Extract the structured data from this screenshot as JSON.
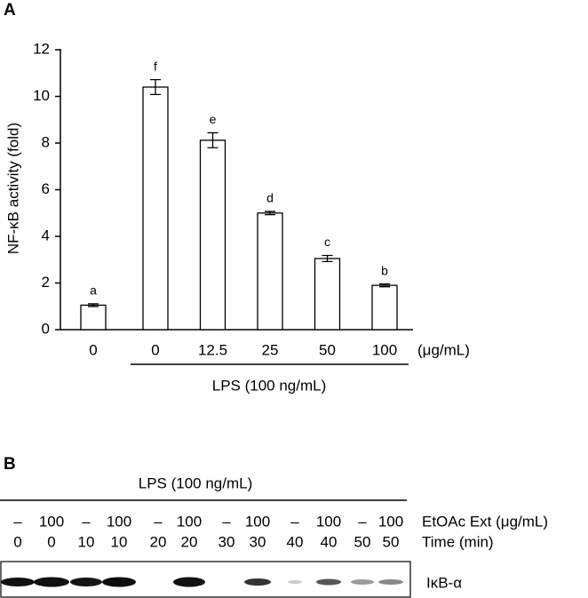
{
  "panel_a": {
    "chart_data": {
      "type": "bar",
      "panel_label": "A",
      "y_label": "NF-κB activity (fold)",
      "categories": [
        "0",
        "0",
        "12.5",
        "25",
        "50",
        "100"
      ],
      "values": [
        1.05,
        10.4,
        8.12,
        5.0,
        3.05,
        1.9
      ],
      "errors": [
        0.06,
        0.32,
        0.32,
        0.07,
        0.13,
        0.06
      ],
      "letters": [
        "a",
        "f",
        "e",
        "d",
        "c",
        "b"
      ],
      "x_unit": "(μg/mL)",
      "group_label": "LPS (100 ng/mL)",
      "color": "#ffffff",
      "ylim": [
        0,
        12
      ],
      "yticks": [
        0,
        2,
        4,
        6,
        8,
        10,
        12
      ]
    }
  },
  "panel_b": {
    "panel_label": "B",
    "lps_label": "LPS (100 ng/mL)",
    "ext_row": [
      "–",
      "100",
      "–",
      "100",
      "–",
      "100",
      "–",
      "100",
      "–",
      "100",
      "–",
      "100"
    ],
    "time_row": [
      "0",
      "0",
      "10",
      "10",
      "20",
      "20",
      "30",
      "30",
      "40",
      "40",
      "50",
      "50"
    ],
    "ext_label": "EtOAc Ext (μg/mL)",
    "time_label": "Time (min)",
    "band_label": "IκB-α"
  }
}
